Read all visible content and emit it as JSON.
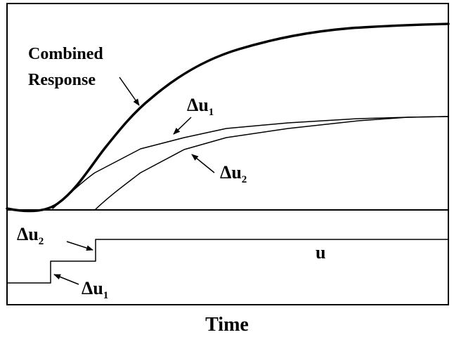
{
  "figure": {
    "xlabel": "Time",
    "annotations": {
      "combined_line1": "Combined",
      "combined_line2": "Response",
      "delta_symbol": "Δ",
      "u_base": "u",
      "sub_1": "1",
      "sub_2": "2",
      "input_label": "u"
    }
  }
}
